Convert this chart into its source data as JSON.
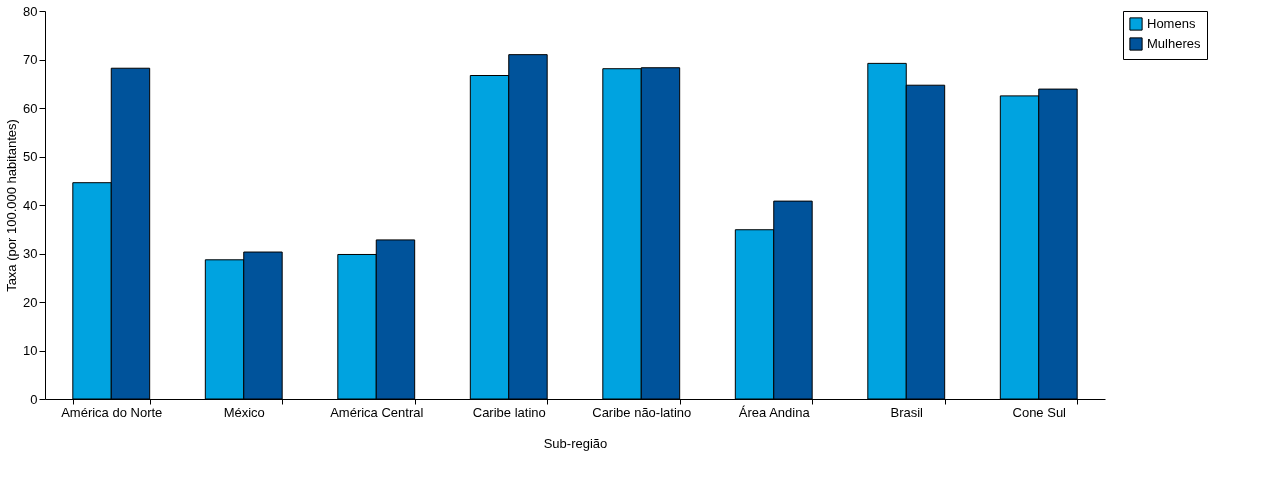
{
  "chart_data": {
    "type": "bar",
    "xlabel": "Sub-região",
    "ylabel": "Taxa (por 100.000 habitantes)",
    "categories": [
      "América do Norte",
      "México",
      "América Central",
      "Caribe latino",
      "Caribe não-latino",
      "Área Andina",
      "Brasil",
      "Cone Sul"
    ],
    "series": [
      {
        "name": "Homens",
        "color": "#00a3e0",
        "values": [
          44.6,
          28.7,
          29.8,
          66.7,
          68.1,
          34.9,
          69.2,
          62.5
        ]
      },
      {
        "name": "Mulheres",
        "color": "#00539b",
        "values": [
          68.2,
          30.3,
          32.8,
          71.0,
          68.3,
          40.8,
          64.7,
          63.9
        ]
      }
    ],
    "ylim": [
      0,
      80
    ],
    "yticks": [
      0,
      10,
      20,
      30,
      40,
      50,
      60,
      70,
      80
    ],
    "grid": false,
    "legend": "right"
  }
}
